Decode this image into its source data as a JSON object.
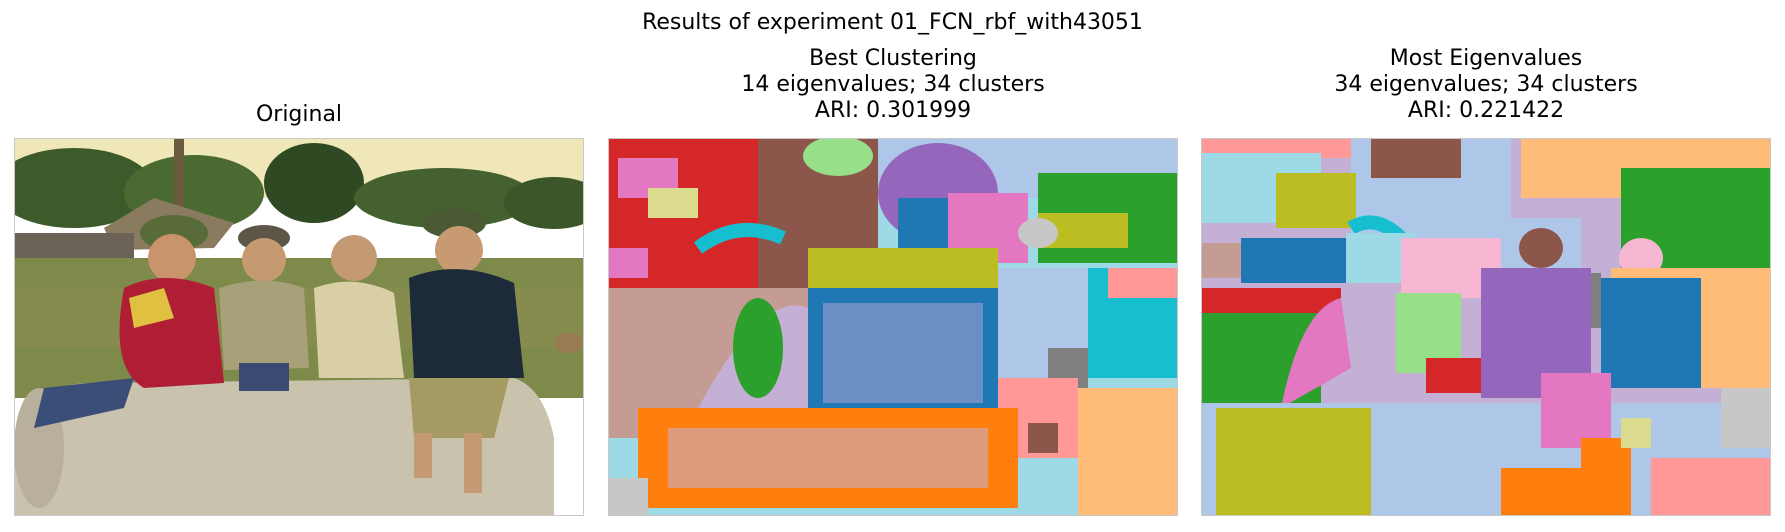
{
  "figure": {
    "suptitle": "Results of experiment 01_FCN_rbf_with43051"
  },
  "panels": [
    {
      "title_lines": [
        "Original"
      ]
    },
    {
      "title_lines": [
        "Best Clustering",
        "14 eigenvalues; 34 clusters",
        "ARI: 0.301999"
      ]
    },
    {
      "title_lines": [
        "Most Eigenvalues",
        "34 eigenvalues; 34 clusters",
        "ARI: 0.221422"
      ]
    }
  ],
  "palette": {
    "blue": "#1f77b4",
    "light_blue": "#aec7e8",
    "orange": "#ff7f0e",
    "light_orange": "#ffbb78",
    "green": "#2ca02c",
    "light_green": "#98df8a",
    "red": "#d62728",
    "pink_red": "#ff9896",
    "purple": "#9467bd",
    "lavender": "#c5b0d5",
    "brown": "#8c564b",
    "tan": "#c49c94",
    "pink": "#e377c2",
    "light_pink": "#f7b6d2",
    "gray": "#7f7f7f",
    "light_gray": "#c7c7c7",
    "olive": "#bcbd22",
    "khaki": "#dbdb8d",
    "cyan": "#17becf",
    "light_cyan": "#9edae5"
  }
}
